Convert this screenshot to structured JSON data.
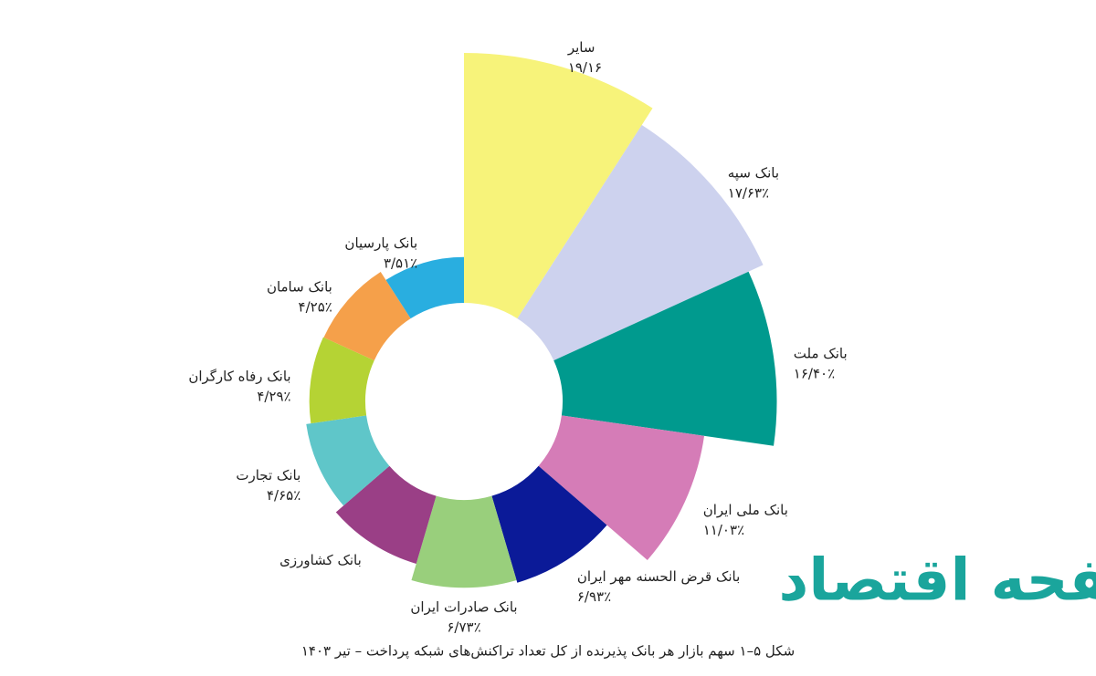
{
  "chart_data": {
    "type": "polar_area",
    "caption": "شکل ۵–۱ سهم بازار هر بانک پذیرنده از کل تعداد تراکنش‌های شبکه پرداخت – تیر ۱۴۰۳",
    "watermark": "صفحه اقتصاد",
    "categories": [
      "سایر",
      "بانک سپه",
      "بانک ملت",
      "بانک ملی ایران",
      "بانک قرض الحسنه مهر ایران",
      "بانک صادرات ایران",
      "بانک کشاورزی",
      "بانک تجارت",
      "بانک رفاه کارگران",
      "بانک سامان",
      "بانک پارسیان"
    ],
    "values": [
      19.16,
      17.63,
      16.4,
      11.03,
      6.93,
      6.73,
      5.42,
      4.65,
      4.29,
      4.25,
      3.51
    ],
    "value_labels": [
      "۱۹/۱۶",
      "۱۷/۶۳٪",
      "۱۶/۴۰٪",
      "۱۱/۰۳٪",
      "۶/۹۳٪",
      "۶/۷۳٪",
      null,
      "۴/۶۵٪",
      "۴/۲۹٪",
      "۴/۲۵٪",
      "۳/۵۱٪"
    ],
    "colors": [
      "#f7f37a",
      "#cdd2ee",
      "#009a8e",
      "#d57cb7",
      "#0b1a98",
      "#99cf7c",
      "#9a3f86",
      "#5fc6c9",
      "#b5d334",
      "#f5a04a",
      "#29aee0"
    ]
  }
}
